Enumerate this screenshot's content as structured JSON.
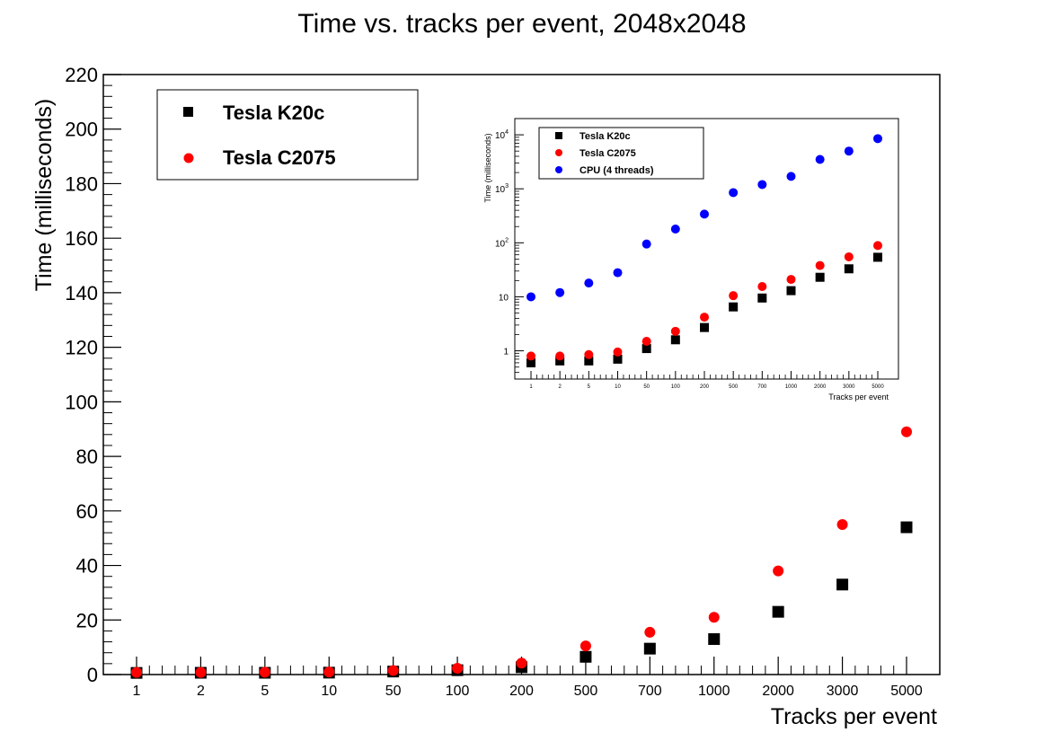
{
  "chart_data": [
    {
      "type": "scatter",
      "title": "Time vs. tracks per event, 2048x2048",
      "xlabel": "Tracks per event",
      "ylabel": "Time (milliseconds)",
      "categories": [
        "1",
        "2",
        "5",
        "10",
        "50",
        "100",
        "200",
        "500",
        "700",
        "1000",
        "2000",
        "3000",
        "5000"
      ],
      "yticks": [
        "0",
        "20",
        "40",
        "60",
        "80",
        "100",
        "120",
        "140",
        "160",
        "180",
        "200",
        "220"
      ],
      "ylim": [
        0,
        220
      ],
      "grid": false,
      "legend": "top-left",
      "series": [
        {
          "name": "Tesla K20c",
          "marker": "square",
          "color": "#000000",
          "values": [
            0.6,
            0.65,
            0.65,
            0.7,
            1.1,
            1.6,
            2.7,
            6.5,
            9.5,
            13,
            23,
            33,
            54
          ]
        },
        {
          "name": "Tesla C2075",
          "marker": "circle",
          "color": "#ff0000",
          "values": [
            0.8,
            0.8,
            0.85,
            0.95,
            1.5,
            2.3,
            4.2,
            10.5,
            15.5,
            21,
            38,
            55,
            89
          ]
        }
      ]
    },
    {
      "type": "scatter",
      "title": "",
      "xlabel": "Tracks per event",
      "ylabel": "Time (milliseconds)",
      "yscale": "log",
      "ylim": [
        0.3,
        20000
      ],
      "categories": [
        "1",
        "2",
        "5",
        "10",
        "50",
        "100",
        "200",
        "500",
        "700",
        "1000",
        "2000",
        "3000",
        "5000"
      ],
      "yticks": [
        {
          "value": 1,
          "base": "1",
          "exp": ""
        },
        {
          "value": 10,
          "base": "10",
          "exp": ""
        },
        {
          "value": 100,
          "base": "10",
          "exp": "2"
        },
        {
          "value": 1000,
          "base": "10",
          "exp": "3"
        },
        {
          "value": 10000,
          "base": "10",
          "exp": "4"
        }
      ],
      "grid": false,
      "legend": "top-left",
      "series": [
        {
          "name": "Tesla K20c",
          "marker": "square",
          "color": "#000000",
          "values": [
            0.6,
            0.65,
            0.65,
            0.7,
            1.1,
            1.6,
            2.7,
            6.5,
            9.5,
            13,
            23,
            33,
            54
          ]
        },
        {
          "name": "Tesla C2075",
          "marker": "circle",
          "color": "#ff0000",
          "values": [
            0.8,
            0.8,
            0.85,
            0.95,
            1.5,
            2.3,
            4.2,
            10.5,
            15.5,
            21,
            38,
            55,
            89
          ]
        },
        {
          "name": "CPU (4 threads)",
          "marker": "circle",
          "color": "#0000ff",
          "values": [
            10,
            12,
            18,
            28,
            95,
            180,
            340,
            850,
            1200,
            1700,
            3500,
            5000,
            8500
          ]
        }
      ]
    }
  ]
}
